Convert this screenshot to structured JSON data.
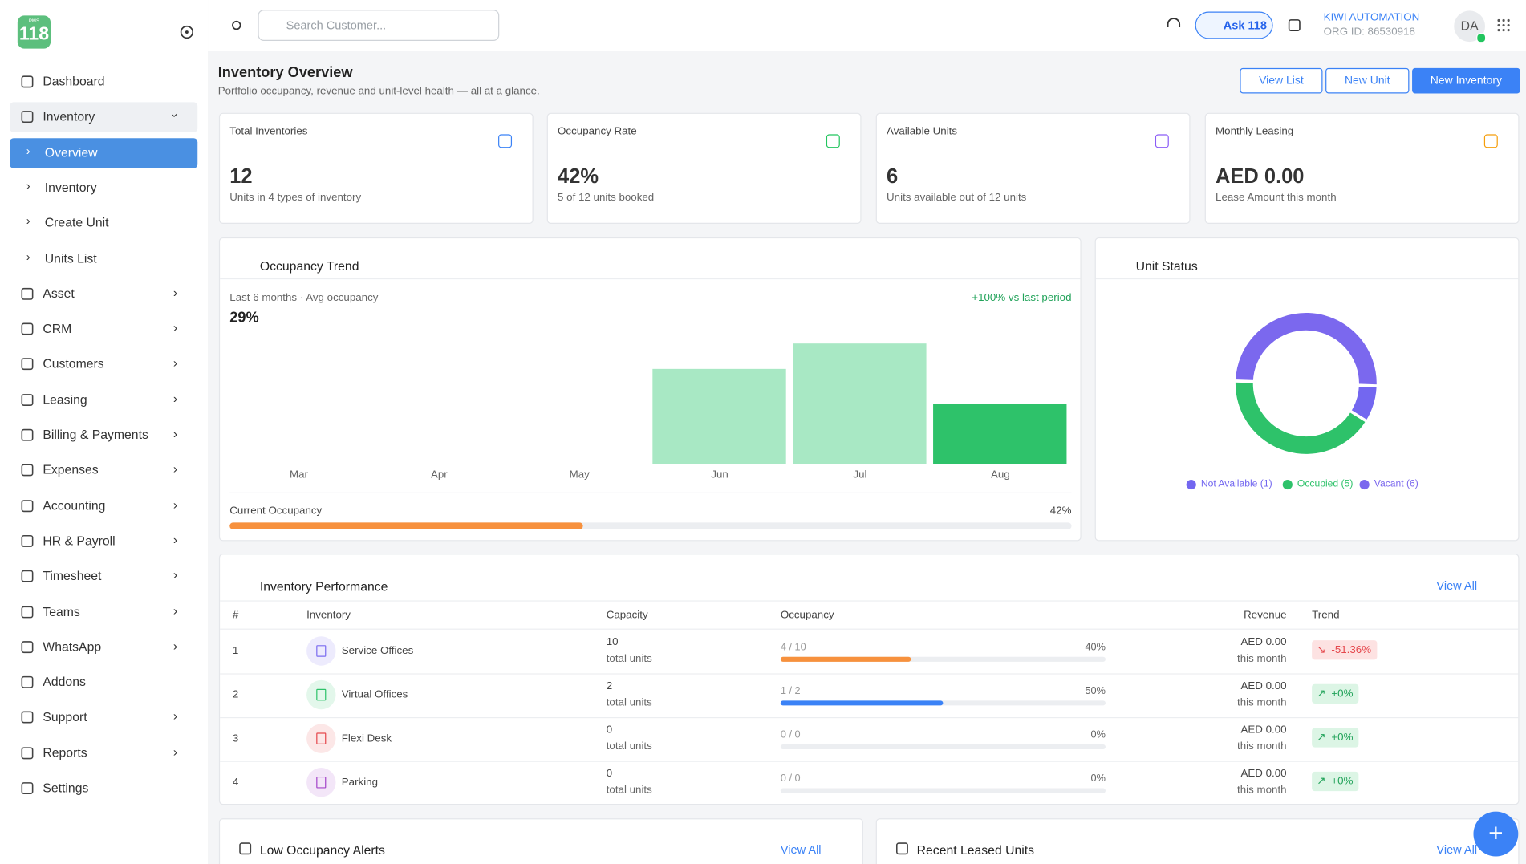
{
  "sidebar": {
    "logo_small": "PMS",
    "logo": "118",
    "nav": [
      {
        "label": "Dashboard",
        "arrow": false
      },
      {
        "label": "Inventory",
        "arrow": true,
        "open": true,
        "sub": [
          "Overview",
          "Inventory",
          "Create Unit",
          "Units List"
        ]
      },
      {
        "label": "Asset",
        "arrow": true
      },
      {
        "label": "CRM",
        "arrow": true
      },
      {
        "label": "Customers",
        "arrow": true
      },
      {
        "label": "Leasing",
        "arrow": true
      },
      {
        "label": "Billing & Payments",
        "arrow": true
      },
      {
        "label": "Expenses",
        "arrow": true
      },
      {
        "label": "Accounting",
        "arrow": true
      },
      {
        "label": "HR & Payroll",
        "arrow": true
      },
      {
        "label": "Timesheet",
        "arrow": true
      },
      {
        "label": "Teams",
        "arrow": true
      },
      {
        "label": "WhatsApp",
        "arrow": true
      },
      {
        "label": "Addons",
        "arrow": false
      },
      {
        "label": "Support",
        "arrow": true
      },
      {
        "label": "Reports",
        "arrow": true
      },
      {
        "label": "Settings",
        "arrow": false
      }
    ]
  },
  "header": {
    "search_placeholder": "Search Customer...",
    "ask": "Ask 118",
    "org_name": "KIWI AUTOMATION",
    "org_id": "ORG ID: 86530918",
    "avatar": "DA"
  },
  "page": {
    "title": "Inventory Overview",
    "subtitle": "Portfolio occupancy, revenue and unit-level health — all at a glance.",
    "buttons": [
      "View List",
      "New Unit",
      "New Inventory"
    ]
  },
  "cards": [
    {
      "label": "Total Inventories",
      "value": "12",
      "sub": "Units in 4 types of inventory",
      "color": "#3b82f6"
    },
    {
      "label": "Occupancy Rate",
      "value": "42%",
      "sub": "5 of 12 units booked",
      "color": "#22c55e"
    },
    {
      "label": "Available Units",
      "value": "6",
      "sub": "Units available out of 12 units",
      "color": "#8b5cf6"
    },
    {
      "label": "Monthly Leasing",
      "value": "AED 0.00",
      "sub": "Lease Amount this month",
      "color": "#f59e0b"
    }
  ],
  "occupancy_trend": {
    "title": "Occupancy Trend",
    "period": "Last 6 months · Avg occupancy",
    "average": "29%",
    "change": "+100% vs last period",
    "chart": {
      "type": "bar",
      "categories": [
        "Mar",
        "Apr",
        "May",
        "Jun",
        "Jul",
        "Aug"
      ],
      "values": [
        0,
        0,
        0,
        60,
        76,
        38
      ],
      "colors": [
        "#a8e8c4",
        "#a8e8c4",
        "#a8e8c4",
        "#a8e8c4",
        "#a8e8c4",
        "#2ec26a"
      ]
    },
    "current_label": "Current Occupancy",
    "current": {
      "value": 42,
      "label": "42%"
    }
  },
  "unit_status": {
    "title": "Unit Status",
    "chart": {
      "type": "pie",
      "series": [
        {
          "name": "Not Available",
          "label": "Not Available (1)",
          "value": 1,
          "color": "#7367f0"
        },
        {
          "name": "Occupied",
          "label": "Occupied (5)",
          "value": 5,
          "color": "#2ec26a"
        },
        {
          "name": "Vacant",
          "label": "Vacant (6)",
          "value": 6,
          "color": "#7b68ee"
        }
      ]
    }
  },
  "performance": {
    "title": "Inventory Performance",
    "view_all": "View All",
    "columns": [
      "#",
      "Inventory",
      "Capacity",
      "Occupancy",
      "Revenue",
      "Trend"
    ],
    "rows": [
      {
        "index": "1",
        "name": "Service Offices",
        "color": "#7b6cf0",
        "capacity": "10",
        "capacity_unit": "total units",
        "occupancy": "4 / 10",
        "pct": {
          "value": 40,
          "label": "40%"
        },
        "bar_color": "#f7913d",
        "revenue": "AED 0.00",
        "revenue_period": "this month",
        "trend": "-51.36%",
        "trend_up": false
      },
      {
        "index": "2",
        "name": "Virtual Offices",
        "color": "#2ec26a",
        "capacity": "2",
        "capacity_unit": "total units",
        "occupancy": "1 / 2",
        "pct": {
          "value": 50,
          "label": "50%"
        },
        "bar_color": "#3b82f6",
        "revenue": "AED 0.00",
        "revenue_period": "this month",
        "trend": "+0%",
        "trend_up": true
      },
      {
        "index": "3",
        "name": "Flexi Desk",
        "color": "#e5484d",
        "capacity": "0",
        "capacity_unit": "total units",
        "occupancy": "0 / 0",
        "pct": {
          "value": 0,
          "label": "0%"
        },
        "bar_color": "#3b82f6",
        "revenue": "AED 0.00",
        "revenue_period": "this month",
        "trend": "+0%",
        "trend_up": true
      },
      {
        "index": "4",
        "name": "Parking",
        "color": "#a445c9",
        "capacity": "0",
        "capacity_unit": "total units",
        "occupancy": "0 / 0",
        "pct": {
          "value": 0,
          "label": "0%"
        },
        "bar_color": "#3b82f6",
        "revenue": "AED 0.00",
        "revenue_period": "this month",
        "trend": "+0%",
        "trend_up": true
      }
    ]
  },
  "bottom": [
    {
      "title": "Low Occupancy Alerts",
      "view_all": "View All"
    },
    {
      "title": "Recent Leased Units",
      "view_all": "View All"
    }
  ]
}
